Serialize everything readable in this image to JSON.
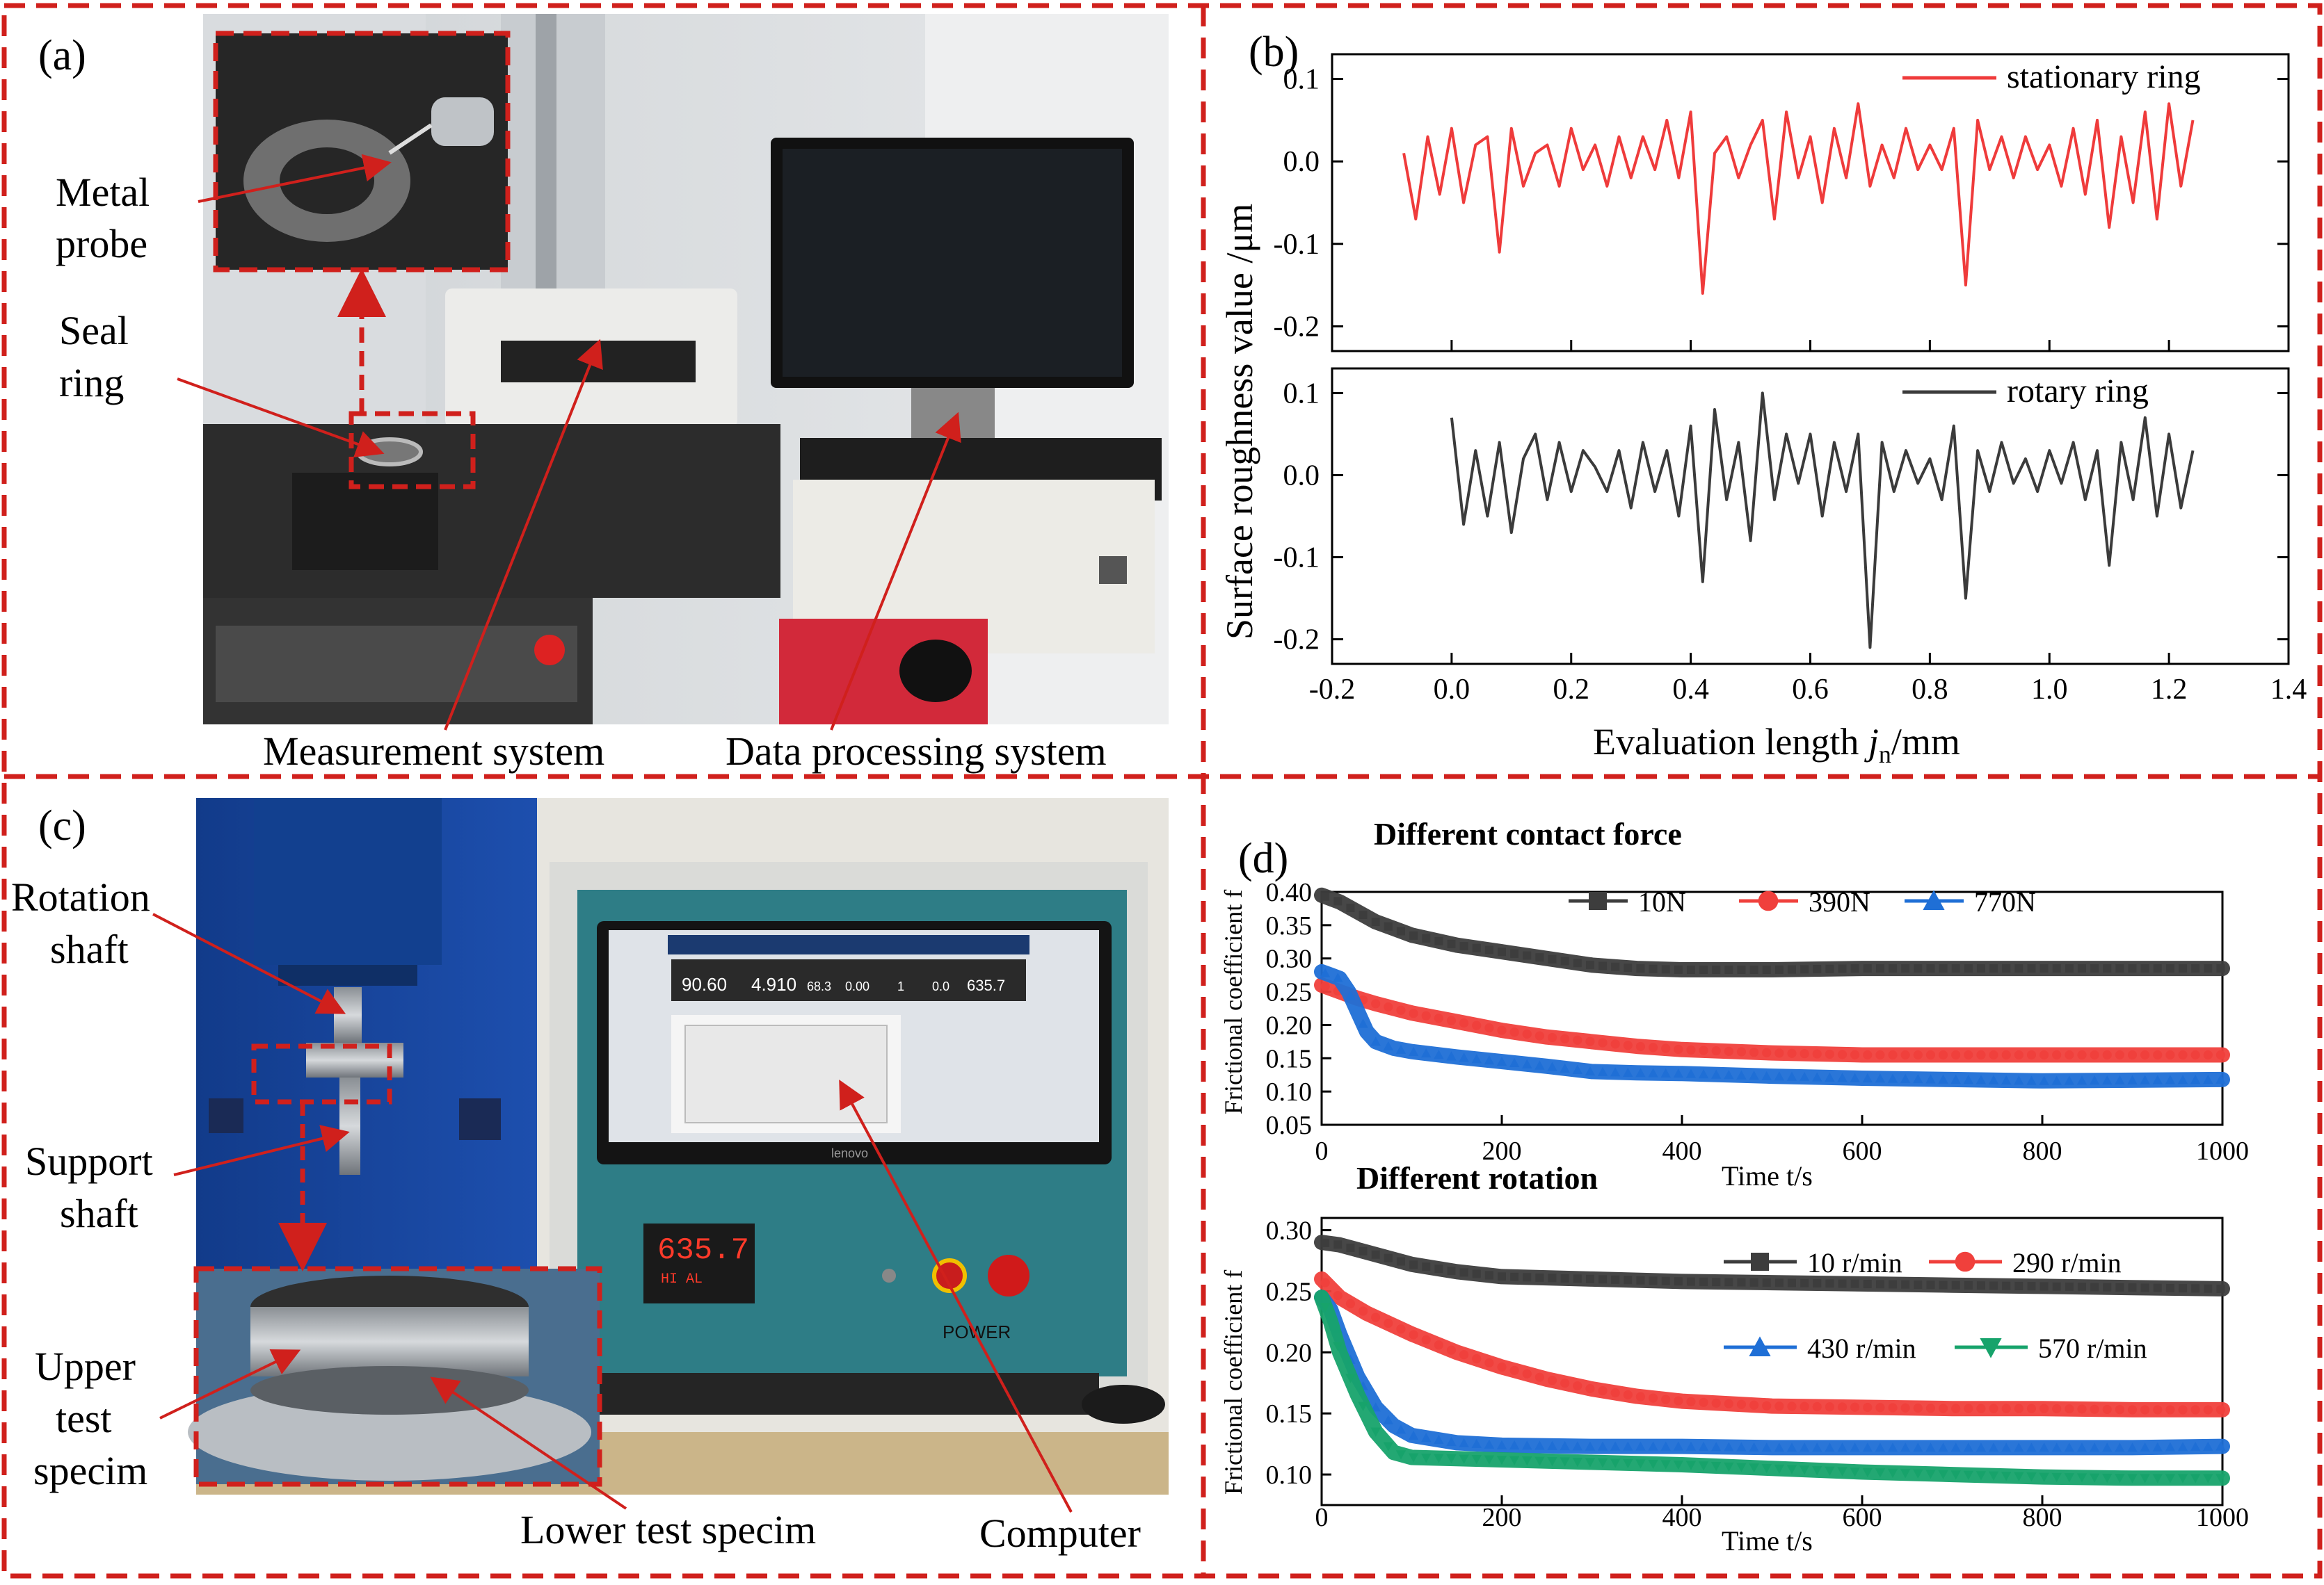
{
  "colors": {
    "frame": "#d0201c",
    "arrow": "#d0201c",
    "stationary": "#ef3b3b",
    "rotary": "#3b3b3b",
    "s10N": "#3d3d3d",
    "s390N": "#f0403c",
    "s770N": "#1f6fd6",
    "s10r": "#3d3d3d",
    "s290r": "#f0403c",
    "s430r": "#1f6fd6",
    "s570r": "#17a36b"
  },
  "panel_a": {
    "label": "(a)",
    "callouts": {
      "metal_probe": [
        "Metal",
        "probe"
      ],
      "seal_ring": [
        "Seal",
        "ring"
      ],
      "measurement": "Measurement system",
      "data_processing": "Data processing system"
    }
  },
  "panel_c": {
    "label": "(c)",
    "callouts": {
      "rotation_shaft": [
        "Rotation",
        "shaft"
      ],
      "support_shaft": [
        "Support",
        "shaft"
      ],
      "upper_test": [
        "Upper",
        "test",
        "specim"
      ],
      "lower_test": "Lower test specim",
      "computer": "Computer"
    },
    "screen_readouts": [
      "90.60",
      "4.910",
      "68.3",
      "0.00",
      "1",
      "0.0",
      "635.7"
    ],
    "controller_display": "635.7",
    "controller_sub": "HI AL",
    "power_label": "POWER",
    "monitor_brand": "lenovo"
  },
  "chart_data": [
    {
      "panel_label": "(b)",
      "type": "line",
      "subplots": "stacked-2",
      "ylabel": "Surface roughness  value /μm",
      "xlabel_parts": {
        "pre": "Evaluation length ",
        "var": "j",
        "sub": "n",
        "post": "/mm"
      },
      "xlim": [
        -0.2,
        1.4
      ],
      "xticks": [
        -0.2,
        0.0,
        0.2,
        0.4,
        0.6,
        0.8,
        1.0,
        1.2,
        1.4
      ],
      "xtick_labels": [
        "-0.2",
        "0.0",
        "0.2",
        "0.4",
        "0.6",
        "0.8",
        "1.0",
        "1.2",
        "1.4"
      ],
      "panels": [
        {
          "ylim": [
            -0.23,
            0.13
          ],
          "yticks": [
            0.1,
            0.0,
            -0.1,
            -0.2
          ],
          "ytick_labels": [
            "0.1",
            "0.0",
            "-0.1",
            "-0.2"
          ],
          "legend": "top-right",
          "series": [
            {
              "name": "stationary ring",
              "color_key": "stationary",
              "x": [
                -0.08,
                -0.06,
                -0.04,
                -0.02,
                0.0,
                0.02,
                0.04,
                0.06,
                0.08,
                0.1,
                0.12,
                0.14,
                0.16,
                0.18,
                0.2,
                0.22,
                0.24,
                0.26,
                0.28,
                0.3,
                0.32,
                0.34,
                0.36,
                0.38,
                0.4,
                0.42,
                0.44,
                0.46,
                0.48,
                0.5,
                0.52,
                0.54,
                0.56,
                0.58,
                0.6,
                0.62,
                0.64,
                0.66,
                0.68,
                0.7,
                0.72,
                0.74,
                0.76,
                0.78,
                0.8,
                0.82,
                0.84,
                0.86,
                0.88,
                0.9,
                0.92,
                0.94,
                0.96,
                0.98,
                1.0,
                1.02,
                1.04,
                1.06,
                1.08,
                1.1,
                1.12,
                1.14,
                1.16,
                1.18,
                1.2,
                1.22,
                1.24
              ],
              "y": [
                0.01,
                -0.07,
                0.03,
                -0.04,
                0.04,
                -0.05,
                0.02,
                0.03,
                -0.11,
                0.04,
                -0.03,
                0.01,
                0.02,
                -0.03,
                0.04,
                -0.01,
                0.02,
                -0.03,
                0.03,
                -0.02,
                0.03,
                -0.01,
                0.05,
                -0.02,
                0.06,
                -0.16,
                0.01,
                0.03,
                -0.02,
                0.02,
                0.05,
                -0.07,
                0.06,
                -0.02,
                0.03,
                -0.05,
                0.04,
                -0.02,
                0.07,
                -0.03,
                0.02,
                -0.02,
                0.04,
                -0.01,
                0.02,
                -0.01,
                0.04,
                -0.15,
                0.05,
                -0.01,
                0.03,
                -0.02,
                0.03,
                -0.01,
                0.02,
                -0.03,
                0.04,
                -0.04,
                0.05,
                -0.08,
                0.03,
                -0.05,
                0.06,
                -0.07,
                0.07,
                -0.03,
                0.05
              ]
            }
          ]
        },
        {
          "ylim": [
            -0.23,
            0.13
          ],
          "yticks": [
            0.1,
            0.0,
            -0.1,
            -0.2
          ],
          "ytick_labels": [
            "0.1",
            "0.0",
            "-0.1",
            "-0.2"
          ],
          "legend": "top-right",
          "series": [
            {
              "name": "rotary ring",
              "color_key": "rotary",
              "x": [
                0.0,
                0.02,
                0.04,
                0.06,
                0.08,
                0.1,
                0.12,
                0.14,
                0.16,
                0.18,
                0.2,
                0.22,
                0.24,
                0.26,
                0.28,
                0.3,
                0.32,
                0.34,
                0.36,
                0.38,
                0.4,
                0.42,
                0.44,
                0.46,
                0.48,
                0.5,
                0.52,
                0.54,
                0.56,
                0.58,
                0.6,
                0.62,
                0.64,
                0.66,
                0.68,
                0.7,
                0.72,
                0.74,
                0.76,
                0.78,
                0.8,
                0.82,
                0.84,
                0.86,
                0.88,
                0.9,
                0.92,
                0.94,
                0.96,
                0.98,
                1.0,
                1.02,
                1.04,
                1.06,
                1.08,
                1.1,
                1.12,
                1.14,
                1.16,
                1.18,
                1.2,
                1.22,
                1.24
              ],
              "y": [
                0.07,
                -0.06,
                0.03,
                -0.05,
                0.04,
                -0.07,
                0.02,
                0.05,
                -0.03,
                0.04,
                -0.02,
                0.03,
                0.01,
                -0.02,
                0.03,
                -0.04,
                0.04,
                -0.02,
                0.03,
                -0.05,
                0.06,
                -0.13,
                0.08,
                -0.03,
                0.04,
                -0.08,
                0.1,
                -0.03,
                0.05,
                -0.01,
                0.05,
                -0.05,
                0.04,
                -0.02,
                0.05,
                -0.21,
                0.04,
                -0.02,
                0.03,
                -0.01,
                0.02,
                -0.03,
                0.06,
                -0.15,
                0.03,
                -0.02,
                0.04,
                -0.01,
                0.02,
                -0.02,
                0.03,
                -0.01,
                0.04,
                -0.03,
                0.03,
                -0.11,
                0.04,
                -0.03,
                0.07,
                -0.05,
                0.05,
                -0.04,
                0.03
              ]
            }
          ]
        }
      ]
    },
    {
      "panel_label": "(d)",
      "type": "line",
      "subplots": "stacked-2",
      "panels": [
        {
          "title": "Different contact force",
          "ylabel": "Frictional coefficient f",
          "xlabel": "Time t/s",
          "xlim": [
            0,
            1000
          ],
          "xticks": [
            0,
            200,
            400,
            600,
            800,
            1000
          ],
          "xtick_labels": [
            "0",
            "200",
            "400",
            "600",
            "800",
            "1000"
          ],
          "ylim": [
            0.05,
            0.4
          ],
          "yticks": [
            0.05,
            0.1,
            0.15,
            0.2,
            0.25,
            0.3,
            0.35,
            0.4
          ],
          "ytick_labels": [
            "0.05",
            "0.10",
            "0.15",
            "0.20",
            "0.25",
            "0.30",
            "0.35",
            "0.40"
          ],
          "legend": "top-center",
          "series": [
            {
              "name": "10N",
              "color_key": "s10N",
              "marker": "square",
              "x": [
                0,
                20,
                40,
                60,
                80,
                100,
                150,
                200,
                250,
                300,
                350,
                400,
                500,
                600,
                700,
                800,
                900,
                1000
              ],
              "y": [
                0.395,
                0.385,
                0.37,
                0.355,
                0.345,
                0.335,
                0.32,
                0.31,
                0.3,
                0.29,
                0.285,
                0.283,
                0.283,
                0.285,
                0.285,
                0.285,
                0.285,
                0.285
              ]
            },
            {
              "name": "390N",
              "color_key": "s390N",
              "marker": "circle",
              "x": [
                0,
                20,
                40,
                60,
                80,
                100,
                150,
                200,
                250,
                300,
                350,
                400,
                500,
                600,
                700,
                800,
                900,
                1000
              ],
              "y": [
                0.26,
                0.25,
                0.24,
                0.232,
                0.225,
                0.218,
                0.205,
                0.192,
                0.182,
                0.175,
                0.168,
                0.163,
                0.158,
                0.155,
                0.155,
                0.155,
                0.155,
                0.155
              ]
            },
            {
              "name": "770N",
              "color_key": "s770N",
              "marker": "triangle-up",
              "x": [
                0,
                10,
                20,
                30,
                40,
                50,
                60,
                80,
                100,
                150,
                200,
                250,
                300,
                350,
                400,
                500,
                600,
                700,
                800,
                900,
                1000
              ],
              "y": [
                0.28,
                0.275,
                0.27,
                0.25,
                0.22,
                0.19,
                0.175,
                0.165,
                0.16,
                0.152,
                0.145,
                0.138,
                0.13,
                0.128,
                0.127,
                0.123,
                0.12,
                0.118,
                0.116,
                0.117,
                0.118
              ]
            }
          ]
        },
        {
          "title": "Different rotation",
          "ylabel": "Frictional coefficient f",
          "xlabel": "Time t/s",
          "xlim": [
            0,
            1000
          ],
          "xticks": [
            0,
            200,
            400,
            600,
            800,
            1000
          ],
          "xtick_labels": [
            "0",
            "200",
            "400",
            "600",
            "800",
            "1000"
          ],
          "ylim": [
            0.075,
            0.31
          ],
          "yticks": [
            0.1,
            0.15,
            0.2,
            0.25,
            0.3
          ],
          "ytick_labels": [
            "0.10",
            "0.15",
            "0.20",
            "0.25",
            "0.30"
          ],
          "legend": "right",
          "series": [
            {
              "name": "10 r/min",
              "color_key": "s10r",
              "marker": "square",
              "x": [
                0,
                20,
                50,
                100,
                150,
                200,
                300,
                400,
                500,
                600,
                700,
                800,
                900,
                1000
              ],
              "y": [
                0.29,
                0.288,
                0.282,
                0.272,
                0.266,
                0.262,
                0.26,
                0.258,
                0.257,
                0.256,
                0.255,
                0.254,
                0.253,
                0.252
              ]
            },
            {
              "name": "290 r/min",
              "color_key": "s290r",
              "marker": "circle",
              "x": [
                0,
                20,
                50,
                100,
                150,
                200,
                250,
                300,
                350,
                400,
                450,
                500,
                600,
                700,
                800,
                900,
                1000
              ],
              "y": [
                0.26,
                0.245,
                0.232,
                0.215,
                0.2,
                0.188,
                0.178,
                0.17,
                0.164,
                0.16,
                0.158,
                0.156,
                0.155,
                0.154,
                0.154,
                0.153,
                0.153
              ]
            },
            {
              "name": "430 r/min",
              "color_key": "s430r",
              "marker": "triangle-up",
              "x": [
                0,
                10,
                20,
                40,
                60,
                80,
                100,
                150,
                200,
                300,
                400,
                500,
                600,
                700,
                800,
                900,
                1000
              ],
              "y": [
                0.245,
                0.235,
                0.215,
                0.18,
                0.155,
                0.14,
                0.132,
                0.126,
                0.124,
                0.123,
                0.123,
                0.122,
                0.122,
                0.122,
                0.122,
                0.122,
                0.123
              ]
            },
            {
              "name": "570 r/min",
              "color_key": "s570r",
              "marker": "triangle-down",
              "x": [
                0,
                10,
                20,
                40,
                60,
                80,
                100,
                150,
                200,
                300,
                400,
                500,
                600,
                700,
                800,
                900,
                1000
              ],
              "y": [
                0.245,
                0.225,
                0.2,
                0.165,
                0.135,
                0.118,
                0.114,
                0.113,
                0.112,
                0.11,
                0.108,
                0.105,
                0.102,
                0.1,
                0.098,
                0.097,
                0.097
              ]
            }
          ]
        }
      ]
    }
  ]
}
